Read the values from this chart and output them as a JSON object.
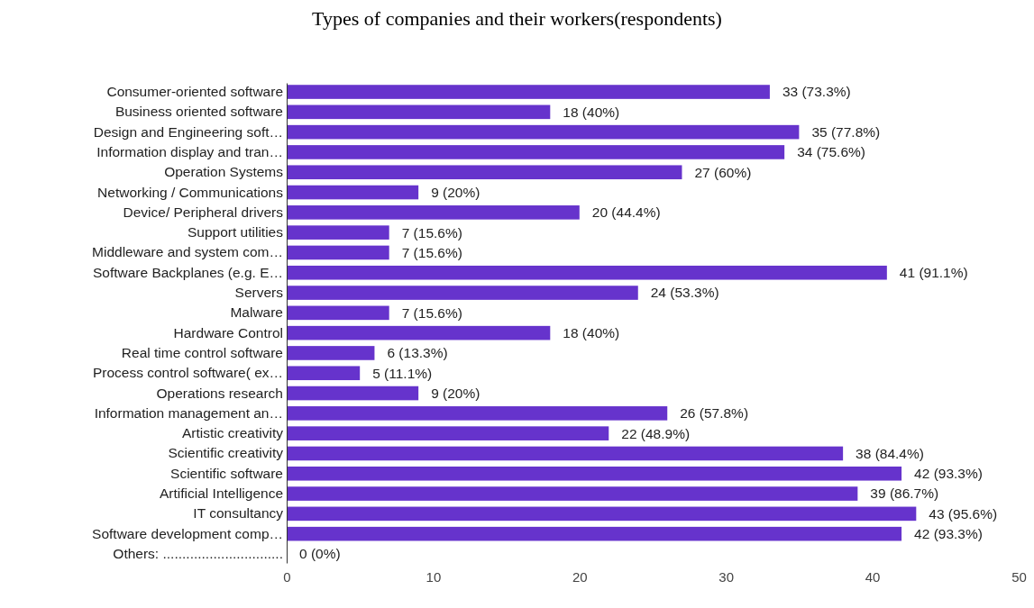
{
  "chart_data": {
    "type": "bar",
    "orientation": "horizontal",
    "title": "Types of companies and their workers(respondents)",
    "categories": [
      "Consumer-oriented software",
      "Business oriented software",
      "Design and Engineering soft…",
      "Information display and tran…",
      "Operation Systems",
      "Networking / Communications",
      "Device/ Peripheral drivers",
      "Support utilities",
      "Middleware and system com…",
      "Software Backplanes (e.g. E…",
      "Servers",
      "Malware",
      "Hardware Control",
      "Real time control software",
      "Process control software( ex…",
      "Operations research",
      "Information management an…",
      "Artistic creativity",
      "Scientific creativity",
      "Scientific software",
      "Artificial Intelligence",
      "IT consultancy",
      "Software development comp…",
      "Others: ..............................."
    ],
    "values": [
      33,
      18,
      35,
      34,
      27,
      9,
      20,
      7,
      7,
      41,
      24,
      7,
      18,
      6,
      5,
      9,
      26,
      22,
      38,
      42,
      39,
      43,
      42,
      0
    ],
    "value_labels": [
      "33 (73.3%)",
      "18 (40%)",
      "35 (77.8%)",
      "34 (75.6%)",
      "27 (60%)",
      "9 (20%)",
      "20 (44.4%)",
      "7 (15.6%)",
      "7 (15.6%)",
      "41 (91.1%)",
      "24 (53.3%)",
      "7 (15.6%)",
      "18 (40%)",
      "6 (13.3%)",
      "5 (11.1%)",
      "9 (20%)",
      "26 (57.8%)",
      "22 (48.9%)",
      "38 (84.4%)",
      "42 (93.3%)",
      "39 (86.7%)",
      "43 (95.6%)",
      "42 (93.3%)",
      "0 (0%)"
    ],
    "color": "#6633cc",
    "xlim": [
      0,
      50
    ],
    "xticks": [
      0,
      10,
      20,
      30,
      40,
      50
    ],
    "grid": false
  }
}
